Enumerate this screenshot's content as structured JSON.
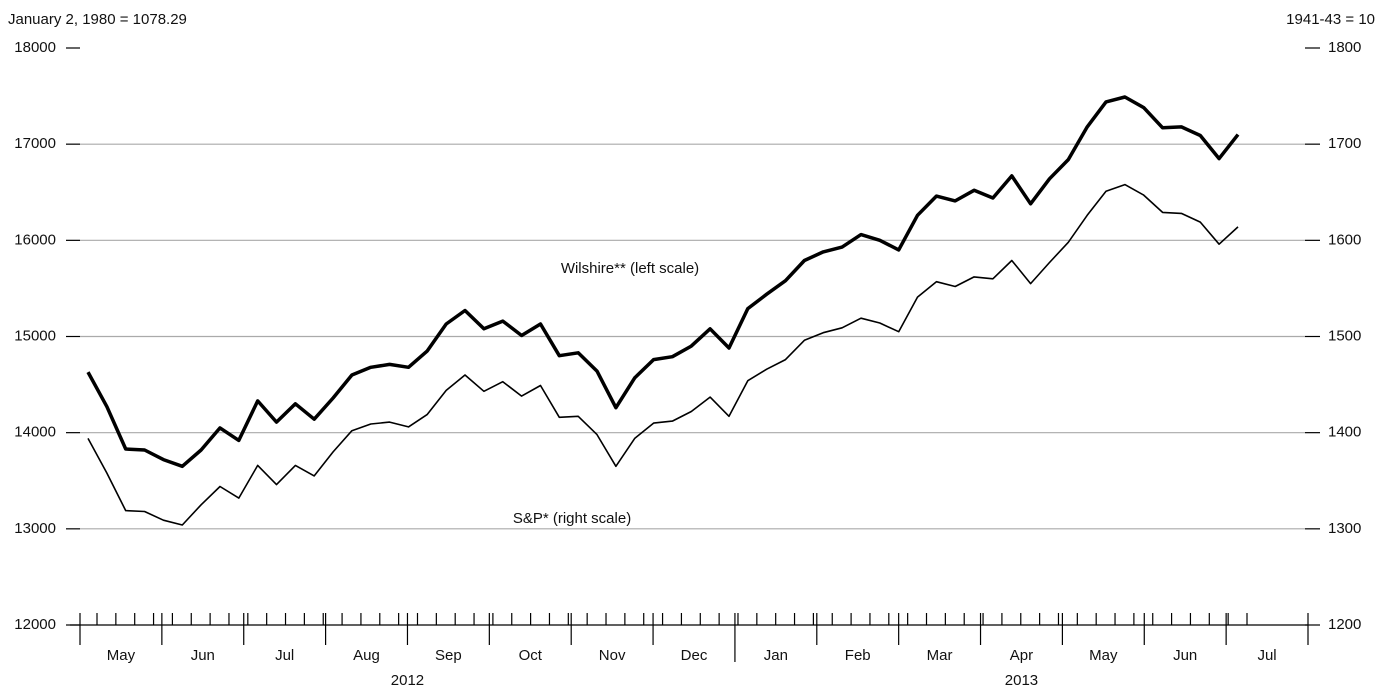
{
  "chart_data": {
    "type": "line",
    "annotations": [
      "January 2, 1980 = 1078.29",
      "1941-43 = 10",
      "Wilshire** (left scale)",
      "S&P* (right scale)"
    ],
    "categories": [
      null,
      null,
      null,
      null,
      null,
      null,
      null,
      null,
      null,
      null,
      null,
      null,
      null,
      null,
      null,
      null,
      null,
      null,
      null,
      null,
      null,
      null,
      null,
      null,
      null,
      null,
      null,
      null,
      null,
      null,
      null,
      null,
      null,
      null,
      null,
      null,
      null,
      null,
      null,
      null,
      null,
      null,
      null,
      null,
      null,
      null,
      null,
      null,
      null,
      null,
      null,
      null,
      null,
      null,
      null,
      null,
      null,
      null,
      null,
      null,
      null,
      null
    ],
    "months": [
      "May",
      "Jun",
      "Jul",
      "Aug",
      "Sep",
      "Oct",
      "Nov",
      "Dec",
      "Jan",
      "Feb",
      "Mar",
      "Apr",
      "May",
      "Jun",
      "Jul"
    ],
    "years": [
      "2012",
      "2013"
    ],
    "ylim": [
      12000,
      18000
    ],
    "yticks": [
      12000,
      13000,
      14000,
      15000,
      16000,
      17000,
      18000
    ],
    "y2lim": [
      1200,
      1800
    ],
    "y2ticks": [
      1200,
      1300,
      1400,
      1500,
      1600,
      1700,
      1800
    ],
    "grid": true,
    "series": [
      {
        "name": "Wilshire",
        "color": "#000000",
        "line_width": 3.5,
        "values": [
          14630,
          14270,
          13830,
          13820,
          13720,
          13650,
          13820,
          14050,
          13920,
          14330,
          14110,
          14300,
          14140,
          14360,
          14600,
          14680,
          14710,
          14680,
          14850,
          15130,
          15270,
          15080,
          15160,
          15010,
          15130,
          14800,
          14830,
          14640,
          14260,
          14570,
          14760,
          14790,
          14900,
          15080,
          14880,
          15290,
          15440,
          15580,
          15790,
          15880,
          15930,
          16060,
          16000,
          15900,
          16260,
          16460,
          16410,
          16520,
          16440,
          16670,
          16380,
          16640,
          16840,
          17180,
          17440,
          17490,
          17380,
          17170,
          17180,
          17090,
          16850,
          17100
        ]
      },
      {
        "name": "S&P",
        "color": "#000000",
        "line_width": 1.6,
        "axis": "y2",
        "values": [
          1394,
          1358,
          1319,
          1318,
          1309,
          1304,
          1325,
          1344,
          1332,
          1366,
          1346,
          1366,
          1355,
          1380,
          1402,
          1409,
          1411,
          1406,
          1419,
          1444,
          1460,
          1443,
          1453,
          1438,
          1449,
          1416,
          1417,
          1398,
          1365,
          1394,
          1410,
          1412,
          1422,
          1437,
          1417,
          1454,
          1466,
          1476,
          1496,
          1504,
          1509,
          1519,
          1514,
          1505,
          1541,
          1557,
          1552,
          1562,
          1560,
          1579,
          1555,
          1577,
          1598,
          1626,
          1651,
          1658,
          1647,
          1629,
          1628,
          1619,
          1596,
          1614
        ]
      }
    ]
  }
}
